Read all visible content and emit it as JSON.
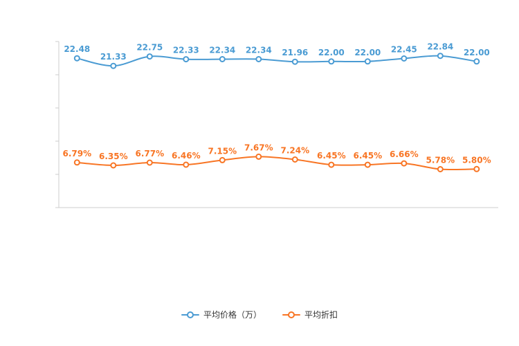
{
  "background_color": "#ffffff",
  "axis_color": "#cccccc",
  "chart_data": {
    "type": "line",
    "title": "",
    "xlabel": "",
    "ylabel": "",
    "categories": [],
    "ylim": [
      0,
      25
    ],
    "grid": false,
    "legend_position": "bottom",
    "series": [
      {
        "name": "平均价格（万）",
        "color": "#4a9bd3",
        "values": [
          22.48,
          21.33,
          22.75,
          22.33,
          22.34,
          22.34,
          21.96,
          22.0,
          22.0,
          22.45,
          22.84,
          22.0
        ],
        "labels": [
          "22.48",
          "21.33",
          "22.75",
          "22.33",
          "22.34",
          "22.34",
          "21.96",
          "22.00",
          "22.00",
          "22.45",
          "22.84",
          "22.00"
        ]
      },
      {
        "name": "平均折扣",
        "color": "#f87524",
        "values": [
          6.79,
          6.35,
          6.77,
          6.46,
          7.15,
          7.67,
          7.24,
          6.45,
          6.45,
          6.66,
          5.78,
          5.8
        ],
        "labels": [
          "6.79%",
          "6.35%",
          "6.77%",
          "6.46%",
          "7.15%",
          "7.67%",
          "7.24%",
          "6.45%",
          "6.45%",
          "6.66%",
          "5.78%",
          "5.80%"
        ]
      }
    ]
  },
  "legend": {
    "items": [
      {
        "label": "平均价格（万）",
        "color": "#4a9bd3"
      },
      {
        "label": "平均折扣",
        "color": "#f87524"
      }
    ]
  }
}
